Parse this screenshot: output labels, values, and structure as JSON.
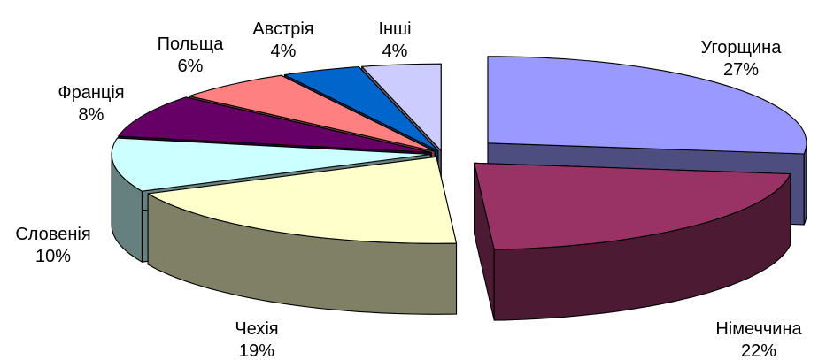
{
  "chart_data": {
    "type": "pie",
    "style": "3d-exploded",
    "legend": "none",
    "units": "%",
    "slices": [
      {
        "label": "Угорщина",
        "value": 27,
        "value_label": "27%",
        "top_color": "#9999FF",
        "side_color": "#4D4D80"
      },
      {
        "label": "Німеччина",
        "value": 22,
        "value_label": "22%",
        "top_color": "#993366",
        "side_color": "#4D1A33"
      },
      {
        "label": "Чехія",
        "value": 19,
        "value_label": "19%",
        "top_color": "#FFFFCC",
        "side_color": "#808066"
      },
      {
        "label": "Словенія",
        "value": 10,
        "value_label": "10%",
        "top_color": "#CCFFFF",
        "side_color": "#668080"
      },
      {
        "label": "Франція",
        "value": 8,
        "value_label": "8%",
        "top_color": "#660066",
        "side_color": "#330033"
      },
      {
        "label": "Польща",
        "value": 6,
        "value_label": "6%",
        "top_color": "#FF8080",
        "side_color": "#804040"
      },
      {
        "label": "Австрія",
        "value": 4,
        "value_label": "4%",
        "top_color": "#0066CC",
        "side_color": "#003366"
      },
      {
        "label": "Інші",
        "value": 4,
        "value_label": "4%",
        "top_color": "#CCCCFF",
        "side_color": "#666680"
      }
    ]
  }
}
